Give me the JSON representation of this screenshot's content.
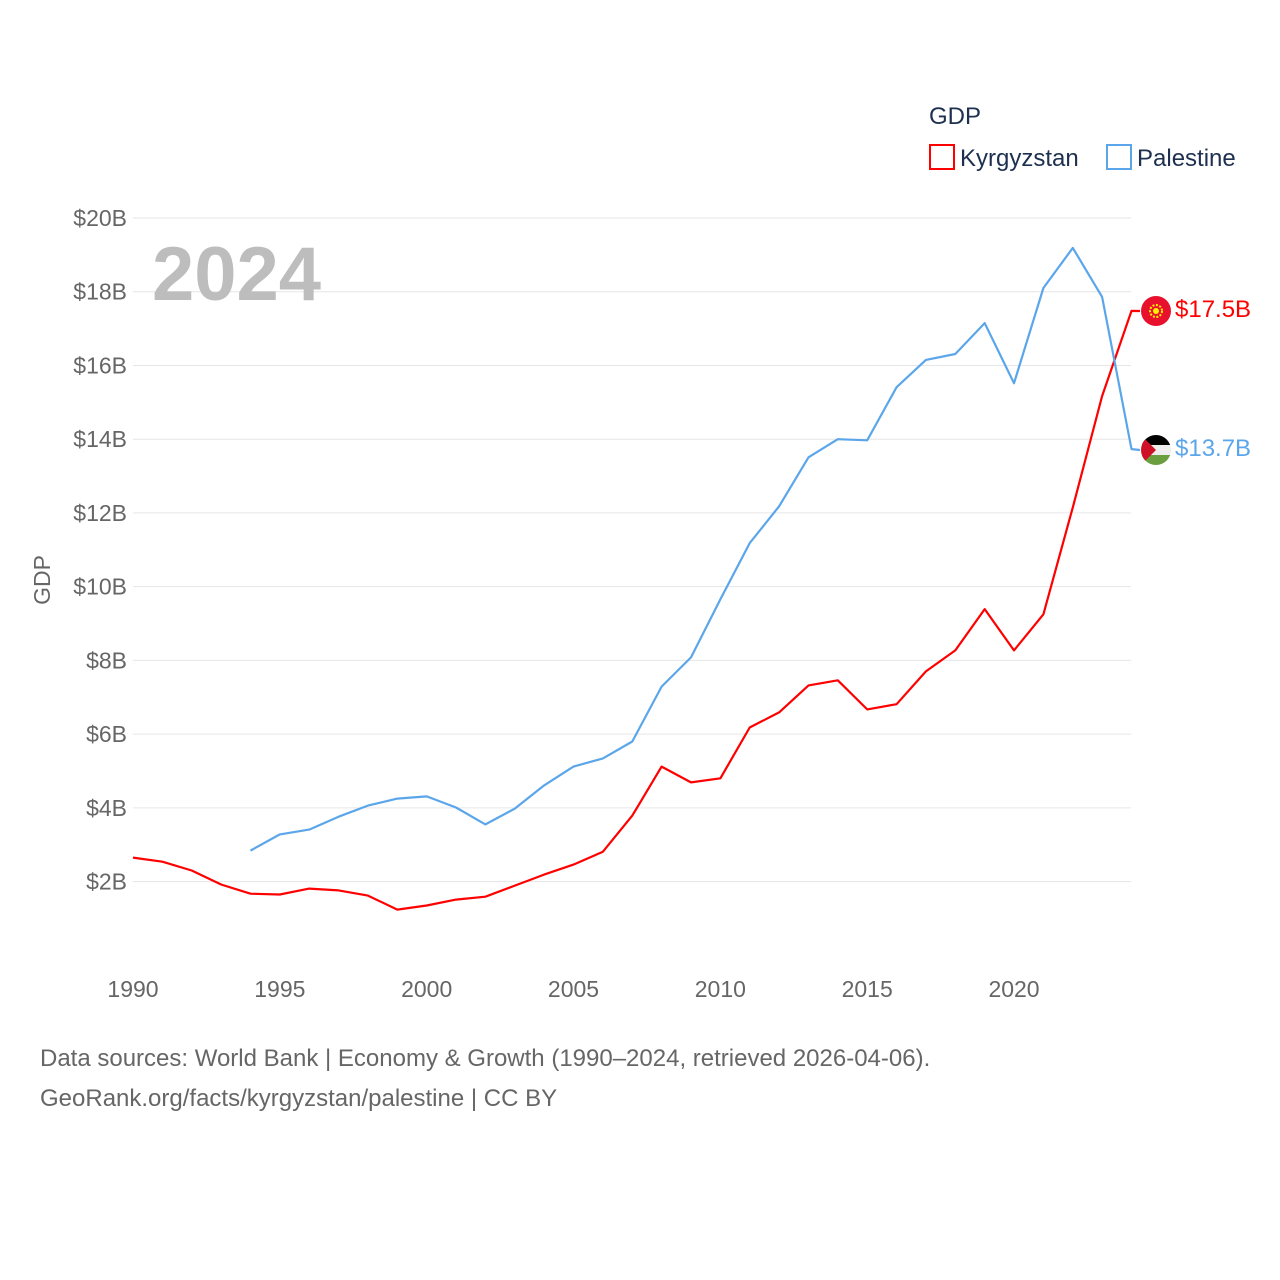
{
  "chart_data": {
    "type": "line",
    "title": "GDP",
    "year_watermark": "2024",
    "ylabel": "GDP",
    "xlabel": "",
    "xlim": [
      1990,
      2024
    ],
    "ylim": [
      0,
      20
    ],
    "x_ticks": [
      1990,
      1995,
      2000,
      2005,
      2010,
      2015,
      2020
    ],
    "y_ticks": [
      2,
      4,
      6,
      8,
      10,
      12,
      14,
      16,
      18,
      20
    ],
    "y_tick_labels": [
      "$2B",
      "$4B",
      "$6B",
      "$8B",
      "$10B",
      "$12B",
      "$14B",
      "$16B",
      "$18B",
      "$20B"
    ],
    "grid": true,
    "legend_position": "top-right",
    "series": [
      {
        "name": "Kyrgyzstan",
        "color": "#ff0000",
        "end_label": "$17.5B",
        "flag": "kyrgyzstan-flag",
        "x": [
          1990,
          1991,
          1992,
          1993,
          1994,
          1995,
          1996,
          1997,
          1998,
          1999,
          2000,
          2001,
          2002,
          2003,
          2004,
          2005,
          2006,
          2007,
          2008,
          2009,
          2010,
          2011,
          2012,
          2013,
          2014,
          2015,
          2016,
          2017,
          2018,
          2019,
          2020,
          2021,
          2022,
          2023,
          2024
        ],
        "values": [
          2.65,
          2.54,
          2.3,
          1.92,
          1.67,
          1.65,
          1.81,
          1.76,
          1.62,
          1.24,
          1.35,
          1.51,
          1.59,
          1.89,
          2.19,
          2.46,
          2.81,
          3.79,
          5.12,
          4.69,
          4.8,
          6.18,
          6.59,
          7.32,
          7.46,
          6.67,
          6.81,
          7.7,
          8.27,
          9.39,
          8.27,
          9.25,
          12.15,
          15.17,
          17.48
        ]
      },
      {
        "name": "Palestine",
        "color": "#5ba6ea",
        "end_label": "$13.7B",
        "flag": "palestine-flag",
        "x": [
          1994,
          1995,
          1996,
          1997,
          1998,
          1999,
          2000,
          2001,
          2002,
          2003,
          2004,
          2005,
          2006,
          2007,
          2008,
          2009,
          2010,
          2011,
          2012,
          2013,
          2014,
          2015,
          2016,
          2017,
          2018,
          2019,
          2020,
          2021,
          2022,
          2023,
          2024
        ],
        "values": [
          2.84,
          3.28,
          3.41,
          3.76,
          4.06,
          4.25,
          4.31,
          4.01,
          3.55,
          3.98,
          4.61,
          5.12,
          5.34,
          5.8,
          7.29,
          8.08,
          9.66,
          11.18,
          12.18,
          13.51,
          14.0,
          13.97,
          15.41,
          16.15,
          16.31,
          17.15,
          15.52,
          18.1,
          19.19,
          17.86,
          13.73
        ]
      }
    ]
  },
  "footer": {
    "line1": "Data sources: World Bank | Economy & Growth (1990–2024, retrieved 2026-04-06).",
    "line2": "GeoRank.org/facts/kyrgyzstan/palestine | CC BY"
  }
}
